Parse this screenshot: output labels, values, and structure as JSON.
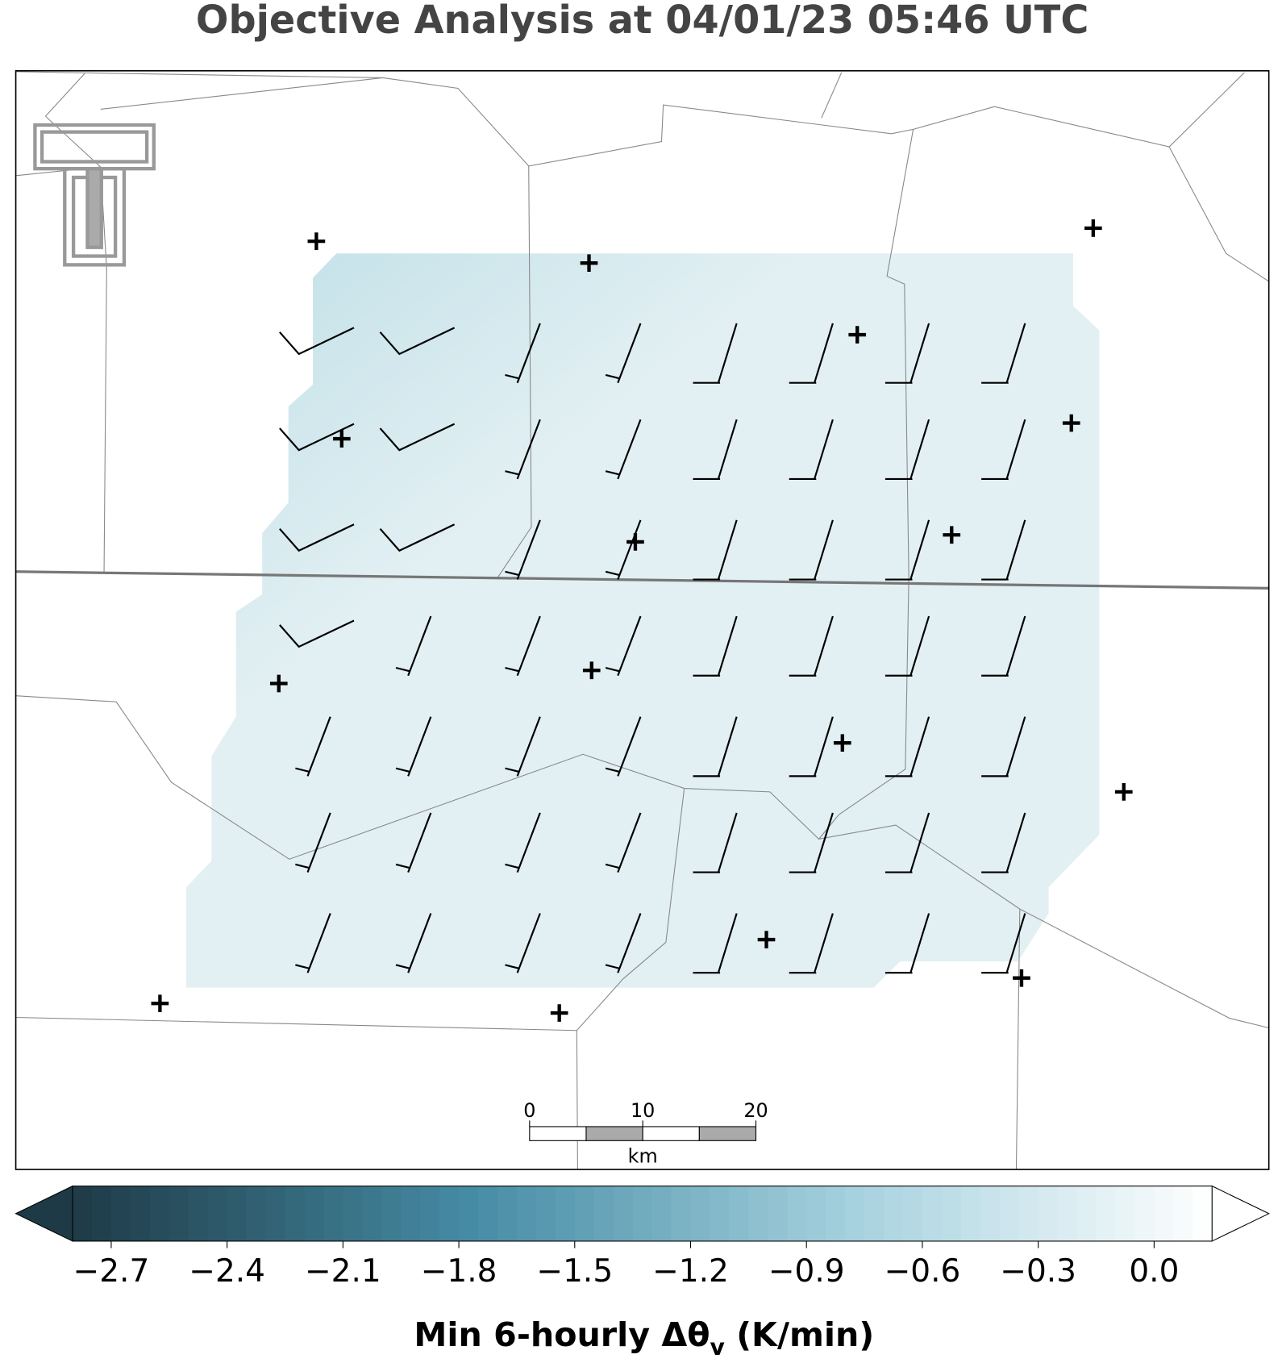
{
  "title": "Objective Analysis at 04/01/23 05:46 UTC",
  "colorbar": {
    "clim": [
      -2.8,
      0.15
    ],
    "ticks": [
      {
        "value": -2.7,
        "label": "−2.7"
      },
      {
        "value": -2.4,
        "label": "−2.4"
      },
      {
        "value": -2.1,
        "label": "−2.1"
      },
      {
        "value": -1.8,
        "label": "−1.8"
      },
      {
        "value": -1.5,
        "label": "−1.5"
      },
      {
        "value": -1.2,
        "label": "−1.2"
      },
      {
        "value": -0.9,
        "label": "−0.9"
      },
      {
        "value": -0.6,
        "label": "−0.6"
      },
      {
        "value": -0.3,
        "label": "−0.3"
      },
      {
        "value": 0,
        "label": "0.0"
      }
    ],
    "label": [
      "Min 6-hourly Δθ",
      "v",
      " (K/min)"
    ]
  },
  "scale_bar": {
    "ticks": [
      0,
      10,
      20
    ],
    "unit": "km"
  }
}
